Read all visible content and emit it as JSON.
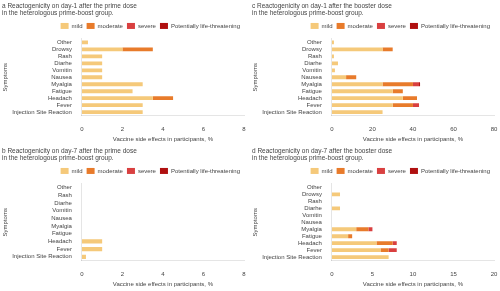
{
  "chart_data": [
    {
      "type": "bar",
      "orientation": "horizontal",
      "stacked": true,
      "title": "a Reactogenicity on day-1 after the prime dose\nin the heterologous prime-boost group.",
      "xlabel": "Vaccine side effects in participants, %",
      "ylabel": "Symptoms",
      "categories": [
        "Injection Site Reaction",
        "Fever",
        "Headach",
        "Fatigue",
        "Myalgia",
        "Nausea",
        "Vomitin",
        "Diarhe",
        "Rash",
        "Drowsy",
        "Other"
      ],
      "series": [
        {
          "name": "mild",
          "color": "#F5C97A",
          "values": [
            3.0,
            3.0,
            3.5,
            2.5,
            3.0,
            1.0,
            1.0,
            1.0,
            1.0,
            2.0,
            0.3
          ]
        },
        {
          "name": "moderate",
          "color": "#E87B2B",
          "values": [
            0.0,
            0.0,
            1.0,
            0.0,
            0.0,
            0.0,
            0.0,
            0.0,
            0.0,
            1.5,
            0.0
          ]
        },
        {
          "name": "severe",
          "color": "#D94040",
          "values": [
            0.0,
            0.0,
            0.0,
            0.0,
            0.0,
            0.0,
            0.0,
            0.0,
            0.0,
            0.0,
            0.0
          ]
        },
        {
          "name": "Potentially life-threatening",
          "color": "#B01010",
          "values": [
            0.0,
            0.0,
            0.0,
            0.0,
            0.0,
            0.0,
            0.0,
            0.0,
            0.0,
            0.0,
            0.0
          ]
        }
      ],
      "xlim": [
        0,
        8
      ],
      "xticks": [
        0,
        2,
        4,
        6,
        8
      ],
      "grid": false,
      "legend": "upper right"
    },
    {
      "type": "bar",
      "orientation": "horizontal",
      "stacked": true,
      "title": "c Reactogenicity on day-1 after the booster dose\nin the heterologous prime-boost group.",
      "xlabel": "Vaccine side effects in participants, %",
      "ylabel": "Symptoms",
      "categories": [
        "Injection Site Reaction",
        "Fever",
        "Headach",
        "Fatigue",
        "Myalgia",
        "Nausea",
        "Vomitin",
        "Diarhe",
        "Rash",
        "Drowsy",
        "Other"
      ],
      "series": [
        {
          "name": "mild",
          "color": "#F5C97A",
          "values": [
            25.0,
            30.0,
            35.0,
            30.0,
            25.0,
            7.0,
            1.5,
            3.0,
            1.0,
            25.0,
            1.0
          ]
        },
        {
          "name": "moderate",
          "color": "#E87B2B",
          "values": [
            0.0,
            10.0,
            7.0,
            5.0,
            15.0,
            5.0,
            0.0,
            0.0,
            0.0,
            5.0,
            0.0
          ]
        },
        {
          "name": "severe",
          "color": "#D94040",
          "values": [
            0.0,
            3.0,
            0.0,
            0.0,
            3.0,
            0.0,
            0.0,
            0.0,
            0.0,
            0.0,
            0.0
          ]
        },
        {
          "name": "Potentially life-threatening",
          "color": "#B01010",
          "values": [
            0.0,
            0.0,
            0.0,
            0.0,
            0.5,
            0.0,
            0.0,
            0.0,
            0.0,
            0.0,
            0.0
          ]
        }
      ],
      "xlim": [
        0,
        80
      ],
      "xticks": [
        0,
        20,
        40,
        60,
        80
      ],
      "grid": false,
      "legend": "upper right"
    },
    {
      "type": "bar",
      "orientation": "horizontal",
      "stacked": true,
      "title": "b Reactogenicity on day-7 after the prime dose\nin the heterologous prime-boost group.",
      "xlabel": "Vaccine side effects in participants, %",
      "ylabel": "Symptoms",
      "categories": [
        "Injection Site Reaction",
        "Fever",
        "Headach",
        "Fatigue",
        "Myalgia",
        "Nausea",
        "Vomitin",
        "Diarhe",
        "Rash",
        "Other"
      ],
      "series": [
        {
          "name": "mild",
          "color": "#F5C97A",
          "values": [
            0.2,
            1.0,
            1.0,
            0.0,
            0.0,
            0.0,
            0.0,
            0.0,
            0.0,
            0.0
          ]
        },
        {
          "name": "moderate",
          "color": "#E87B2B",
          "values": [
            0.0,
            0.0,
            0.0,
            0.0,
            0.0,
            0.0,
            0.0,
            0.0,
            0.0,
            0.0
          ]
        },
        {
          "name": "severe",
          "color": "#D94040",
          "values": [
            0.0,
            0.0,
            0.0,
            0.0,
            0.0,
            0.0,
            0.0,
            0.0,
            0.0,
            0.0
          ]
        },
        {
          "name": "Potentially life-threatening",
          "color": "#B01010",
          "values": [
            0.0,
            0.0,
            0.0,
            0.0,
            0.0,
            0.0,
            0.0,
            0.0,
            0.0,
            0.0
          ]
        }
      ],
      "xlim": [
        0,
        8
      ],
      "xticks": [
        0,
        2,
        4,
        6,
        8
      ],
      "grid": false,
      "legend": "upper right"
    },
    {
      "type": "bar",
      "orientation": "horizontal",
      "stacked": true,
      "title": "d Reactogenicity on day-7 after the booster dose\nin the heterologous prime-boost group.",
      "xlabel": "Vaccine side effects in participants, %",
      "ylabel": "Symptoms",
      "categories": [
        "Injection Site Reaction",
        "Fever",
        "Headach",
        "Fatigue",
        "Myalgia",
        "Nausea",
        "Vomitin",
        "Diarhe",
        "Rash",
        "Drowsy",
        "Other"
      ],
      "series": [
        {
          "name": "mild",
          "color": "#F5C97A",
          "values": [
            7.0,
            6.0,
            5.5,
            2.0,
            3.0,
            0.0,
            0.0,
            1.0,
            0.0,
            1.0,
            0.0
          ]
        },
        {
          "name": "moderate",
          "color": "#E87B2B",
          "values": [
            0.0,
            1.0,
            2.0,
            0.5,
            1.5,
            0.0,
            0.0,
            0.0,
            0.0,
            0.0,
            0.0
          ]
        },
        {
          "name": "severe",
          "color": "#D94040",
          "values": [
            0.0,
            1.0,
            0.5,
            0.0,
            0.5,
            0.0,
            0.0,
            0.0,
            0.0,
            0.0,
            0.0
          ]
        },
        {
          "name": "Potentially life-threatening",
          "color": "#B01010",
          "values": [
            0.0,
            0.0,
            0.0,
            0.0,
            0.0,
            0.0,
            0.0,
            0.0,
            0.0,
            0.0,
            0.0
          ]
        }
      ],
      "xlim": [
        0,
        20
      ],
      "xticks": [
        0,
        5,
        10,
        15,
        20
      ],
      "grid": false,
      "legend": "upper right"
    }
  ]
}
